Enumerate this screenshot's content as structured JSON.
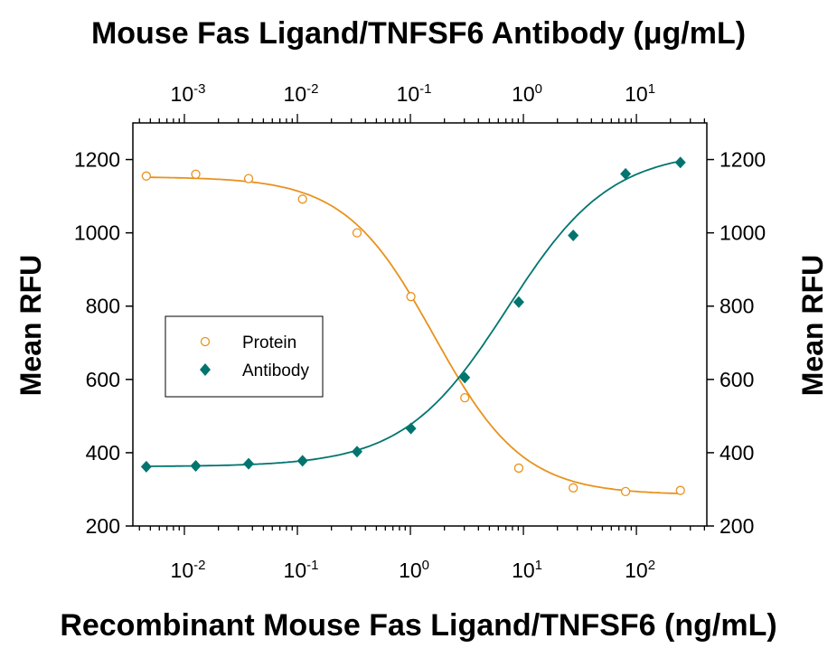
{
  "chart_data": {
    "type": "scatter",
    "title": "Mouse Fas Ligand/TNFSF6 Antibody (μg/mL)",
    "xlabel": "Recombinant Mouse Fas Ligand/TNFSF6 (ng/mL)",
    "x2label": "Mouse Fas Ligand/TNFSF6 Antibody (μg/mL)",
    "ylabel": "Mean RFU",
    "y2label": "Mean RFU",
    "x_scale": "log",
    "xlim": [
      0.0035,
      420
    ],
    "x2lim": [
      0.00035,
      42
    ],
    "ylim": [
      200,
      1300
    ],
    "y_ticks": [
      200,
      400,
      600,
      800,
      1000,
      1200
    ],
    "x_ticks": [
      {
        "value": 0.01,
        "base": "10",
        "exp": "-2"
      },
      {
        "value": 0.1,
        "base": "10",
        "exp": "-1"
      },
      {
        "value": 1,
        "base": "10",
        "exp": "0"
      },
      {
        "value": 10,
        "base": "10",
        "exp": "1"
      },
      {
        "value": 100,
        "base": "10",
        "exp": "2"
      }
    ],
    "x2_ticks": [
      {
        "value": 0.001,
        "base": "10",
        "exp": "-3"
      },
      {
        "value": 0.01,
        "base": "10",
        "exp": "-2"
      },
      {
        "value": 0.1,
        "base": "10",
        "exp": "-1"
      },
      {
        "value": 1,
        "base": "10",
        "exp": "0"
      },
      {
        "value": 10,
        "base": "10",
        "exp": "1"
      }
    ],
    "legend_position": "left",
    "series": [
      {
        "name": "Protein",
        "axis": "bottom",
        "marker": "open-circle",
        "color": "#E8921E",
        "x": [
          0.0046,
          0.0126,
          0.037,
          0.111,
          0.337,
          1.01,
          3.03,
          9.1,
          27.6,
          80.2,
          245
        ],
        "y": [
          1155,
          1160,
          1148,
          1092,
          1000,
          826,
          550,
          358,
          304,
          294,
          297
        ],
        "fit": {
          "bottom": 285,
          "top": 1153,
          "ec50": 1.62,
          "hill": 1.1
        }
      },
      {
        "name": "Antibody",
        "axis": "top",
        "marker": "filled-diamond",
        "color": "#007570",
        "x": [
          0.00046,
          0.00126,
          0.0037,
          0.0111,
          0.0337,
          0.101,
          0.303,
          0.91,
          2.76,
          8.02,
          24.5
        ],
        "y": [
          362,
          364,
          370,
          378,
          403,
          466,
          605,
          811,
          993,
          1161,
          1192
        ],
        "fit": {
          "bottom": 362,
          "top": 1225,
          "ec50": 0.72,
          "hill": 0.95
        }
      }
    ]
  }
}
